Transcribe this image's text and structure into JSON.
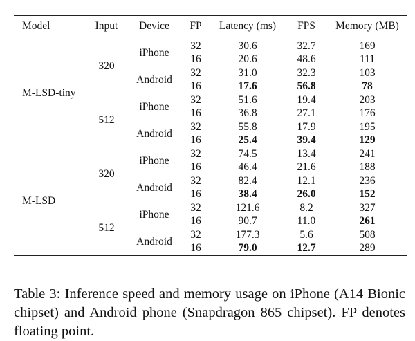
{
  "table": {
    "headers": [
      "Model",
      "Input",
      "Device",
      "FP",
      "Latency (ms)",
      "FPS",
      "Memory (MB)"
    ],
    "groups": [
      {
        "model": "M-LSD-tiny",
        "inputs": [
          {
            "input": "320",
            "devices": [
              {
                "device": "iPhone",
                "rows": [
                  {
                    "fp": "32",
                    "latency": "30.6",
                    "fps": "32.7",
                    "memory": "169"
                  },
                  {
                    "fp": "16",
                    "latency": "20.6",
                    "fps": "48.6",
                    "memory": "111"
                  }
                ]
              },
              {
                "device": "Android",
                "rows": [
                  {
                    "fp": "32",
                    "latency": "31.0",
                    "fps": "32.3",
                    "memory": "103"
                  },
                  {
                    "fp": "16",
                    "latency": "17.6",
                    "fps": "56.8",
                    "memory": "78",
                    "bold": [
                      "latency",
                      "fps",
                      "memory"
                    ]
                  }
                ]
              }
            ]
          },
          {
            "input": "512",
            "devices": [
              {
                "device": "iPhone",
                "rows": [
                  {
                    "fp": "32",
                    "latency": "51.6",
                    "fps": "19.4",
                    "memory": "203"
                  },
                  {
                    "fp": "16",
                    "latency": "36.8",
                    "fps": "27.1",
                    "memory": "176"
                  }
                ]
              },
              {
                "device": "Android",
                "rows": [
                  {
                    "fp": "32",
                    "latency": "55.8",
                    "fps": "17.9",
                    "memory": "195"
                  },
                  {
                    "fp": "16",
                    "latency": "25.4",
                    "fps": "39.4",
                    "memory": "129",
                    "bold": [
                      "latency",
                      "fps",
                      "memory"
                    ]
                  }
                ]
              }
            ]
          }
        ]
      },
      {
        "model": "M-LSD",
        "inputs": [
          {
            "input": "320",
            "devices": [
              {
                "device": "iPhone",
                "rows": [
                  {
                    "fp": "32",
                    "latency": "74.5",
                    "fps": "13.4",
                    "memory": "241"
                  },
                  {
                    "fp": "16",
                    "latency": "46.4",
                    "fps": "21.6",
                    "memory": "188"
                  }
                ]
              },
              {
                "device": "Android",
                "rows": [
                  {
                    "fp": "32",
                    "latency": "82.4",
                    "fps": "12.1",
                    "memory": "236"
                  },
                  {
                    "fp": "16",
                    "latency": "38.4",
                    "fps": "26.0",
                    "memory": "152",
                    "bold": [
                      "latency",
                      "fps",
                      "memory"
                    ]
                  }
                ]
              }
            ]
          },
          {
            "input": "512",
            "devices": [
              {
                "device": "iPhone",
                "rows": [
                  {
                    "fp": "32",
                    "latency": "121.6",
                    "fps": "8.2",
                    "memory": "327"
                  },
                  {
                    "fp": "16",
                    "latency": "90.7",
                    "fps": "11.0",
                    "memory": "261",
                    "bold": [
                      "memory"
                    ]
                  }
                ]
              },
              {
                "device": "Android",
                "rows": [
                  {
                    "fp": "32",
                    "latency": "177.3",
                    "fps": "5.6",
                    "memory": "508"
                  },
                  {
                    "fp": "16",
                    "latency": "79.0",
                    "fps": "12.7",
                    "memory": "289",
                    "bold": [
                      "latency",
                      "fps"
                    ]
                  }
                ]
              }
            ]
          }
        ]
      }
    ]
  },
  "caption": "Table 3: Inference speed and memory usage on iPhone (A14 Bionic chipset) and Android phone (Snapdragon 865 chipset). FP denotes floating point."
}
